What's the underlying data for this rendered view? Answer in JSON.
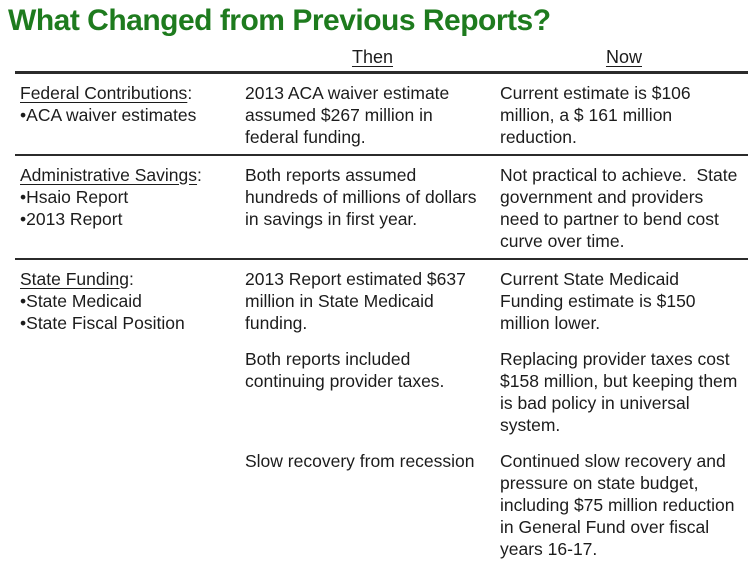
{
  "title": "What Changed from Previous Reports?",
  "colors": {
    "title_green": "#1e7b1e",
    "text": "#1c1c1c",
    "divider": "#2b2b2b",
    "background": "#ffffff"
  },
  "glyphs": {
    "bullet": "•",
    "colon": ":"
  },
  "table": {
    "headers": {
      "then": "Then",
      "now": "Now"
    },
    "rows": [
      {
        "category": {
          "label": "Federal Contributions",
          "bullets": [
            "ACA waiver estimates"
          ]
        },
        "then": [
          "2013 ACA waiver estimate assumed $267 million in federal funding."
        ],
        "now": [
          "Current estimate is $106 million, a $ 161 million reduction."
        ]
      },
      {
        "category": {
          "label": "Administrative Savings",
          "bullets": [
            "Hsaio Report",
            "2013 Report"
          ]
        },
        "then": [
          "Both reports assumed hundreds of millions of dollars in savings in first year."
        ],
        "now": [
          "Not practical to achieve.  State government and providers need to partner to bend cost curve over time."
        ]
      },
      {
        "category": {
          "label": "State Funding",
          "bullets": [
            "State Medicaid",
            "State Fiscal Position"
          ]
        },
        "then": [
          "2013 Report estimated $637 million in State Medicaid funding.",
          "Both reports included continuing provider taxes.",
          "Slow recovery from recession"
        ],
        "now": [
          "Current State Medicaid Funding estimate is $150 million lower.",
          "Replacing provider taxes cost $158 million, but keeping them is bad policy in universal system.",
          "Continued slow recovery and pressure on state budget, including $75 million reduction in General Fund over fiscal years 16-17."
        ]
      }
    ]
  }
}
